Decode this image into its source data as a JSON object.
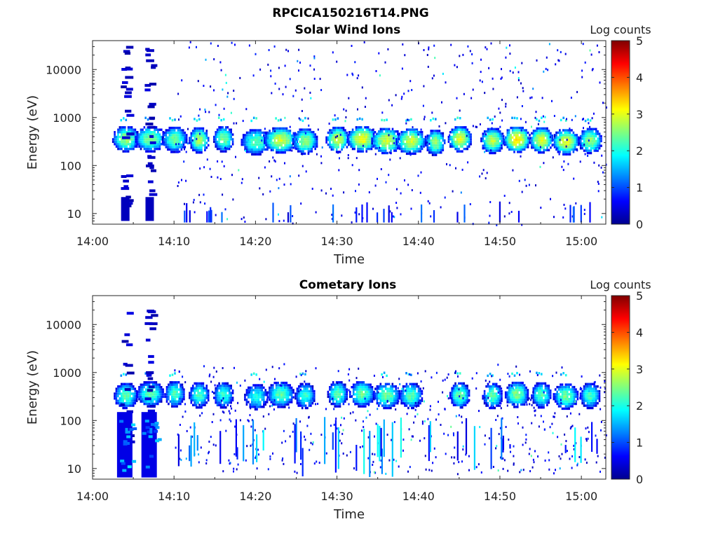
{
  "figure_title": "RPCICA150216T14.PNG",
  "chart_data": [
    {
      "type": "heatmap",
      "title": "Solar Wind Ions",
      "xlabel": "Time",
      "ylabel": "Energy (eV)",
      "x_ticks": [
        "14:00",
        "14:10",
        "14:20",
        "14:30",
        "14:40",
        "14:50",
        "15:00"
      ],
      "xlim": [
        "14:00",
        "15:03"
      ],
      "y_ticks": [
        "10",
        "100",
        "1000",
        "10000"
      ],
      "y_scale": "log",
      "ylim": [
        6,
        40000
      ],
      "colorbar": {
        "label": "Log counts",
        "ticks": [
          "0",
          "1",
          "2",
          "3",
          "4",
          "5"
        ],
        "range": [
          0,
          5
        ],
        "colormap": "jet"
      },
      "blobs": [
        {
          "t": "14:04",
          "e": 380,
          "v": 2.6,
          "w": 1.6
        },
        {
          "t": "14:07",
          "e": 380,
          "v": 2.5,
          "w": 1.8
        },
        {
          "t": "14:10",
          "e": 370,
          "v": 2.4,
          "w": 1.5
        },
        {
          "t": "14:13",
          "e": 360,
          "v": 2.7,
          "w": 1.2
        },
        {
          "t": "14:16",
          "e": 380,
          "v": 2.5,
          "w": 1.2
        },
        {
          "t": "14:20",
          "e": 330,
          "v": 2.3,
          "w": 1.8
        },
        {
          "t": "14:23",
          "e": 360,
          "v": 2.9,
          "w": 2.0
        },
        {
          "t": "14:26",
          "e": 340,
          "v": 2.6,
          "w": 1.5
        },
        {
          "t": "14:30",
          "e": 370,
          "v": 2.9,
          "w": 1.4
        },
        {
          "t": "14:33",
          "e": 380,
          "v": 3.1,
          "w": 1.8
        },
        {
          "t": "14:36",
          "e": 350,
          "v": 2.9,
          "w": 1.8
        },
        {
          "t": "14:39",
          "e": 340,
          "v": 2.9,
          "w": 1.8
        },
        {
          "t": "14:42",
          "e": 320,
          "v": 2.6,
          "w": 1.2
        },
        {
          "t": "14:45",
          "e": 380,
          "v": 3.0,
          "w": 1.4
        },
        {
          "t": "14:49",
          "e": 350,
          "v": 2.8,
          "w": 1.4
        },
        {
          "t": "14:52",
          "e": 370,
          "v": 3.3,
          "w": 1.6
        },
        {
          "t": "14:55",
          "e": 360,
          "v": 3.0,
          "w": 1.4
        },
        {
          "t": "14:58",
          "e": 330,
          "v": 3.0,
          "w": 1.6
        },
        {
          "t": "15:01",
          "e": 350,
          "v": 2.6,
          "w": 1.4
        }
      ]
    },
    {
      "type": "heatmap",
      "title": "Cometary Ions",
      "xlabel": "Time",
      "ylabel": "Energy (eV)",
      "x_ticks": [
        "14:00",
        "14:10",
        "14:20",
        "14:30",
        "14:40",
        "14:50",
        "15:00"
      ],
      "xlim": [
        "14:00",
        "15:03"
      ],
      "y_ticks": [
        "10",
        "100",
        "1000",
        "10000"
      ],
      "y_scale": "log",
      "ylim": [
        6,
        40000
      ],
      "colorbar": {
        "label": "Log counts",
        "ticks": [
          "0",
          "1",
          "2",
          "3",
          "4",
          "5"
        ],
        "range": [
          0,
          5
        ],
        "colormap": "jet"
      },
      "blobs": [
        {
          "t": "14:04",
          "e": 350,
          "v": 2.3,
          "w": 1.4
        },
        {
          "t": "14:07",
          "e": 380,
          "v": 2.3,
          "w": 1.6
        },
        {
          "t": "14:10",
          "e": 380,
          "v": 2.2,
          "w": 1.2
        },
        {
          "t": "14:13",
          "e": 360,
          "v": 2.2,
          "w": 1.2
        },
        {
          "t": "14:16",
          "e": 360,
          "v": 2.1,
          "w": 1.2
        },
        {
          "t": "14:20",
          "e": 330,
          "v": 2.0,
          "w": 1.4
        },
        {
          "t": "14:23",
          "e": 370,
          "v": 2.3,
          "w": 1.6
        },
        {
          "t": "14:26",
          "e": 350,
          "v": 2.1,
          "w": 1.2
        },
        {
          "t": "14:30",
          "e": 380,
          "v": 2.3,
          "w": 1.2
        },
        {
          "t": "14:33",
          "e": 380,
          "v": 2.4,
          "w": 1.5
        },
        {
          "t": "14:36",
          "e": 350,
          "v": 2.4,
          "w": 1.6
        },
        {
          "t": "14:39",
          "e": 350,
          "v": 2.3,
          "w": 1.4
        },
        {
          "t": "14:45",
          "e": 360,
          "v": 2.4,
          "w": 1.2
        },
        {
          "t": "14:49",
          "e": 350,
          "v": 2.3,
          "w": 1.2
        },
        {
          "t": "14:52",
          "e": 370,
          "v": 2.5,
          "w": 1.4
        },
        {
          "t": "14:55",
          "e": 360,
          "v": 2.3,
          "w": 1.2
        },
        {
          "t": "14:58",
          "e": 340,
          "v": 2.4,
          "w": 1.5
        },
        {
          "t": "15:01",
          "e": 350,
          "v": 2.2,
          "w": 1.2
        }
      ],
      "low_energy_blocks": [
        {
          "t": "14:04",
          "e": 50,
          "v": 1.4
        },
        {
          "t": "14:07",
          "e": 50,
          "v": 1.3
        }
      ]
    }
  ]
}
